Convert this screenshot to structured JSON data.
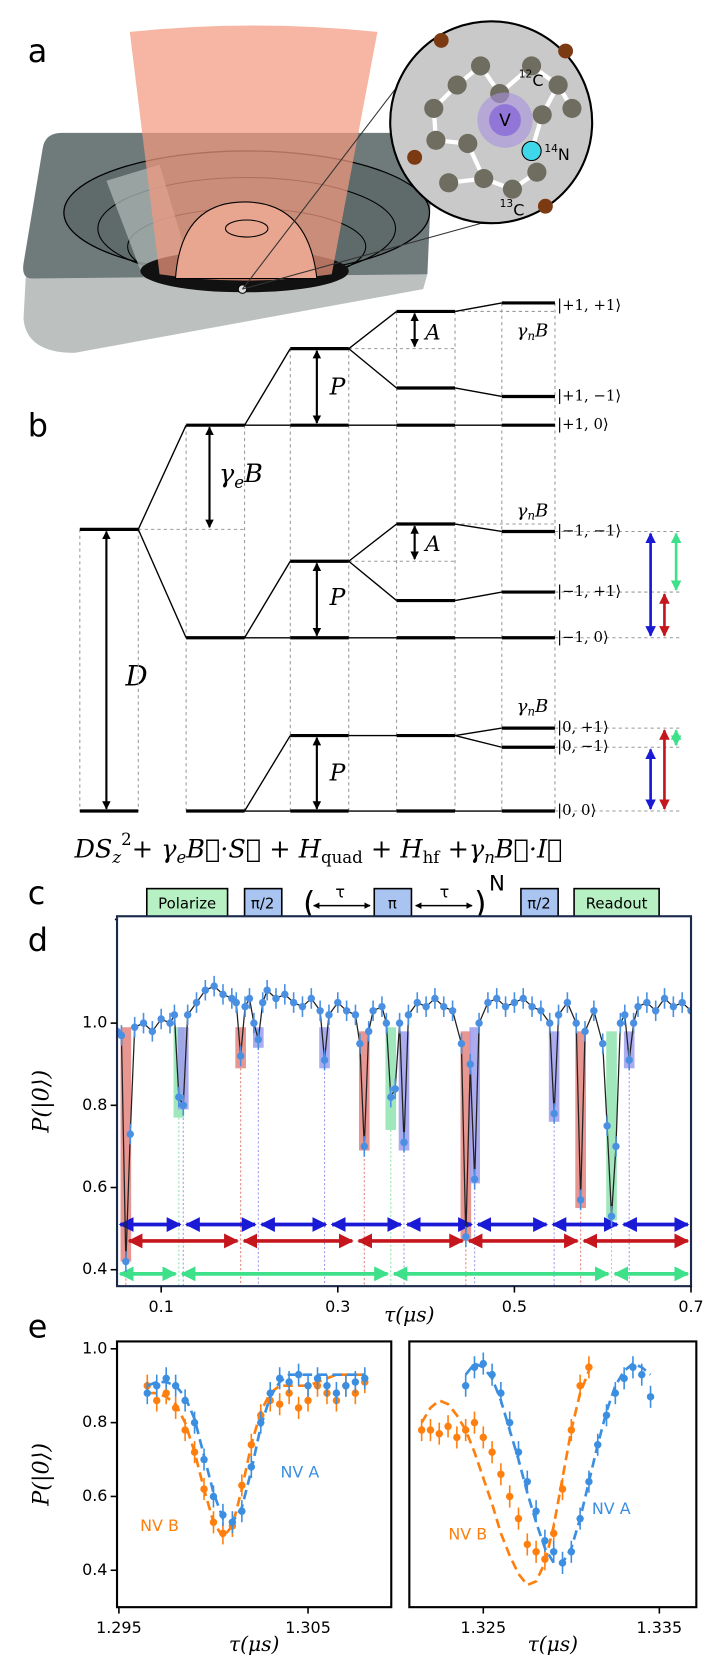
{
  "panel_labels": [
    "a",
    "b",
    "c",
    "d",
    "e"
  ],
  "inset": {
    "vacancy": "V",
    "c12": {
      "mass": "12",
      "element": "C"
    },
    "n14": {
      "mass": "14",
      "element": "N"
    },
    "c13": {
      "mass": "13",
      "element": "C"
    }
  },
  "level_diagram": {
    "states": [
      "|+1, +1⟩",
      "|+1, −1⟩",
      "|+1, 0⟩",
      "|−1, −1⟩",
      "|−1, +1⟩",
      "|−1, 0⟩",
      "|0, +1⟩",
      "|0, −1⟩",
      "|0, 0⟩"
    ],
    "zero_field_label": "D",
    "zeeman_label": [
      {
        "text": "γ",
        "role": "italic"
      },
      {
        "text": "e",
        "role": "sub-italic"
      },
      {
        "text": "B",
        "role": "italic"
      }
    ],
    "quadrupole_labels": [
      "P",
      "P",
      "P"
    ],
    "hyperfine_labels": [
      "A",
      "A"
    ],
    "nuclear_zeeman_labels": [
      [
        {
          "text": "γ",
          "role": "italic"
        },
        {
          "text": "n",
          "role": "sub-italic"
        },
        {
          "text": "B",
          "role": "italic"
        }
      ],
      [
        {
          "text": "γ",
          "role": "italic"
        },
        {
          "text": "n",
          "role": "sub-italic"
        },
        {
          "text": "B",
          "role": "italic"
        }
      ],
      [
        {
          "text": "γ",
          "role": "italic"
        },
        {
          "text": "n",
          "role": "sub-italic"
        },
        {
          "text": "B",
          "role": "italic"
        }
      ]
    ],
    "hamiltonian": [
      {
        "text": "DS",
        "role": "italic"
      },
      {
        "text": "z",
        "role": "sub-italic"
      },
      {
        "text": "2",
        "role": "sup"
      },
      {
        "text": "+ ",
        "role": "normal"
      },
      {
        "text": "γ",
        "role": "italic"
      },
      {
        "text": "e",
        "role": "sub-italic"
      },
      {
        "text": "B⃗·S⃗",
        "role": "italic"
      },
      {
        "text": " + ",
        "role": "normal"
      },
      {
        "text": "H",
        "role": "italic"
      },
      {
        "text": "quad",
        "role": "sub"
      },
      {
        "text": " + ",
        "role": "normal"
      },
      {
        "text": "H",
        "role": "italic"
      },
      {
        "text": "hf",
        "role": "sub"
      },
      {
        "text": " +",
        "role": "normal"
      },
      {
        "text": "γ",
        "role": "italic"
      },
      {
        "text": "n",
        "role": "sub-italic"
      },
      {
        "text": "B⃗·I⃗",
        "role": "italic"
      }
    ]
  },
  "pulse_sequence": {
    "blocks": [
      "Polarize",
      "π/2",
      "π",
      "π/2",
      "Readout"
    ],
    "delays": [
      "τ",
      "τ"
    ],
    "brackets": [
      "(",
      ")"
    ],
    "repeat": "N"
  },
  "chart_data": [
    {
      "type": "line",
      "xlabel": "τ(μs)",
      "ylabel": "P(|0⟩)",
      "xlim": [
        0.05,
        0.7
      ],
      "ylim": [
        0.36,
        1.26
      ],
      "xticks": [
        0.1,
        0.3,
        0.5,
        0.7
      ],
      "yticks": [
        0.4,
        0.6,
        0.8,
        {
          "value": 1.0,
          "label": "1.0"
        }
      ],
      "x": [
        0.05,
        0.055,
        0.06,
        0.065,
        0.07,
        0.08,
        0.09,
        0.1,
        0.11,
        0.115,
        0.12,
        0.125,
        0.13,
        0.14,
        0.15,
        0.16,
        0.17,
        0.18,
        0.185,
        0.19,
        0.195,
        0.2,
        0.205,
        0.21,
        0.215,
        0.22,
        0.23,
        0.24,
        0.25,
        0.26,
        0.27,
        0.28,
        0.285,
        0.29,
        0.3,
        0.31,
        0.32,
        0.325,
        0.33,
        0.335,
        0.34,
        0.35,
        0.355,
        0.36,
        0.365,
        0.37,
        0.375,
        0.38,
        0.39,
        0.4,
        0.41,
        0.42,
        0.43,
        0.44,
        0.445,
        0.45,
        0.455,
        0.46,
        0.47,
        0.48,
        0.49,
        0.5,
        0.51,
        0.52,
        0.53,
        0.54,
        0.545,
        0.55,
        0.56,
        0.57,
        0.575,
        0.58,
        0.59,
        0.6,
        0.605,
        0.61,
        0.615,
        0.62,
        0.625,
        0.63,
        0.635,
        0.64,
        0.65,
        0.66,
        0.67,
        0.68,
        0.69,
        0.7
      ],
      "series": [
        {
          "color": "#4a90e2",
          "error": 0.025,
          "values": [
            0.98,
            0.97,
            0.42,
            0.73,
            0.99,
            1.0,
            0.98,
            1.01,
            1.0,
            1.02,
            0.82,
            0.8,
            1.02,
            1.05,
            1.08,
            1.09,
            1.07,
            1.06,
            1.05,
            0.92,
            1.04,
            1.06,
            1.0,
            0.96,
            1.05,
            1.08,
            1.06,
            1.07,
            1.05,
            1.04,
            1.06,
            1.03,
            0.91,
            1.02,
            1.05,
            1.03,
            1.02,
            0.95,
            0.7,
            0.98,
            1.03,
            1.04,
            1.0,
            0.82,
            0.84,
            1.0,
            0.71,
            1.02,
            1.05,
            1.04,
            1.06,
            1.04,
            1.03,
            0.95,
            0.48,
            0.9,
            0.62,
            1.0,
            1.05,
            1.06,
            1.04,
            1.05,
            1.06,
            1.04,
            1.03,
            1.0,
            0.78,
            1.02,
            1.05,
            1.0,
            0.57,
            0.98,
            1.03,
            0.95,
            0.75,
            0.53,
            0.7,
            1.0,
            1.02,
            0.91,
            1.0,
            1.04,
            1.05,
            1.03,
            1.06,
            1.04,
            1.05,
            1.03
          ]
        }
      ],
      "bars": [
        {
          "x": 0.06,
          "range": [
            0.42,
            0.99
          ],
          "color": "#e3847e"
        },
        {
          "x": 0.19,
          "range": [
            0.89,
            0.99
          ],
          "color": "#e3847e"
        },
        {
          "x": 0.33,
          "range": [
            0.69,
            0.98
          ],
          "color": "#e3847e"
        },
        {
          "x": 0.445,
          "range": [
            0.47,
            0.98
          ],
          "color": "#e3847e"
        },
        {
          "x": 0.575,
          "range": [
            0.55,
            0.98
          ],
          "color": "#e3847e"
        },
        {
          "x": 0.12,
          "range": [
            0.77,
            0.99
          ],
          "color": "#8fe3b0"
        },
        {
          "x": 0.36,
          "range": [
            0.74,
            0.99
          ],
          "color": "#8fe3b0"
        },
        {
          "x": 0.61,
          "range": [
            0.52,
            0.98
          ],
          "color": "#8fe3b0"
        },
        {
          "x": 0.125,
          "range": [
            0.79,
            0.99
          ],
          "color": "#9c9cec"
        },
        {
          "x": 0.21,
          "range": [
            0.94,
            0.99
          ],
          "color": "#9c9cec"
        },
        {
          "x": 0.285,
          "range": [
            0.89,
            0.99
          ],
          "color": "#9c9cec"
        },
        {
          "x": 0.375,
          "range": [
            0.69,
            0.98
          ],
          "color": "#9c9cec"
        },
        {
          "x": 0.455,
          "range": [
            0.61,
            0.99
          ],
          "color": "#9c9cec"
        },
        {
          "x": 0.545,
          "range": [
            0.76,
            0.98
          ],
          "color": "#9c9cec"
        },
        {
          "x": 0.63,
          "range": [
            0.89,
            0.98
          ],
          "color": "#9c9cec"
        }
      ],
      "arrow_rows": [
        {
          "color": "#1a1ad6",
          "y": 0.51,
          "boundaries": [
            0.05,
            0.125,
            0.21,
            0.29,
            0.375,
            0.455,
            0.54,
            0.62,
            0.7
          ]
        },
        {
          "color": "#c4161c",
          "y": 0.47,
          "boundaries": [
            0.06,
            0.19,
            0.32,
            0.445,
            0.575,
            0.7
          ]
        },
        {
          "color": "#3ee08a",
          "y": 0.39,
          "boundaries": [
            0.05,
            0.12,
            0.36,
            0.61,
            0.7
          ]
        }
      ]
    },
    {
      "type": "line",
      "xlabel": "τ(μs)",
      "ylabel": "P(|0⟩)",
      "xlim": [
        1.2949,
        1.3094
      ],
      "ylim": [
        0.3,
        1.02
      ],
      "xticks": [
        1.295,
        1.305
      ],
      "yticks": [
        0.4,
        0.6,
        0.8,
        {
          "value": 1.0,
          "label": "1.0"
        }
      ],
      "x": [
        1.2965,
        1.297,
        1.2975,
        1.298,
        1.2985,
        1.299,
        1.2995,
        1.3,
        1.3005,
        1.301,
        1.3015,
        1.302,
        1.3025,
        1.303,
        1.3035,
        1.304,
        1.3045,
        1.305,
        1.3055,
        1.306,
        1.3065,
        1.307,
        1.3075,
        1.308
      ],
      "series": [
        {
          "name": "NV B",
          "color": "#ff7f0e",
          "error": 0.03,
          "values": [
            0.9,
            0.86,
            0.88,
            0.84,
            0.78,
            0.72,
            0.62,
            0.53,
            0.5,
            0.52,
            0.63,
            0.74,
            0.82,
            0.86,
            0.85,
            0.88,
            0.84,
            0.86,
            0.9,
            0.88,
            0.86,
            0.9,
            0.88,
            0.91
          ],
          "fit": [
            0.88,
            0.88,
            0.87,
            0.85,
            0.8,
            0.72,
            0.62,
            0.53,
            0.49,
            0.52,
            0.62,
            0.74,
            0.83,
            0.88,
            0.9,
            0.9,
            0.9,
            0.9,
            0.91,
            0.92,
            0.93,
            0.93,
            0.93,
            0.93
          ]
        },
        {
          "name": "NV A",
          "color": "#3c8fe0",
          "error": 0.03,
          "values": [
            0.88,
            0.9,
            0.92,
            0.9,
            0.86,
            0.8,
            0.7,
            0.6,
            0.55,
            0.53,
            0.56,
            0.68,
            0.8,
            0.88,
            0.92,
            0.91,
            0.93,
            0.9,
            0.92,
            0.9,
            0.88,
            0.9,
            0.91,
            0.92
          ],
          "fit": [
            0.9,
            0.91,
            0.91,
            0.9,
            0.87,
            0.81,
            0.71,
            0.61,
            0.54,
            0.53,
            0.57,
            0.67,
            0.79,
            0.87,
            0.91,
            0.93,
            0.93,
            0.93,
            0.93,
            0.93,
            0.93,
            0.93,
            0.93,
            0.93
          ]
        }
      ]
    },
    {
      "type": "line",
      "xlabel": "τ(μs)",
      "xlim": [
        1.3208,
        1.3371
      ],
      "ylim": [
        0.3,
        1.02
      ],
      "xticks": [
        1.325,
        1.335
      ],
      "series": [
        {
          "name": "NV B",
          "color": "#ff7f0e",
          "error": 0.03,
          "x": [
            1.3215,
            1.322,
            1.3225,
            1.323,
            1.3235,
            1.324,
            1.3245,
            1.325,
            1.3255,
            1.326,
            1.3265,
            1.327,
            1.3275,
            1.328,
            1.3285,
            1.329,
            1.3295,
            1.33,
            1.3305,
            1.331
          ],
          "values": [
            0.78,
            0.78,
            0.77,
            0.79,
            0.76,
            0.78,
            0.8,
            0.76,
            0.72,
            0.66,
            0.6,
            0.54,
            0.47,
            0.45,
            0.43,
            0.5,
            0.62,
            0.78,
            0.9,
            0.95
          ],
          "fit": [
            0.8,
            0.84,
            0.86,
            0.85,
            0.82,
            0.78,
            0.72,
            0.65,
            0.58,
            0.5,
            0.44,
            0.39,
            0.36,
            0.37,
            0.42,
            0.52,
            0.65,
            0.78,
            0.88,
            0.94
          ]
        },
        {
          "name": "NV A",
          "color": "#3c8fe0",
          "error": 0.03,
          "x": [
            1.324,
            1.3245,
            1.325,
            1.3255,
            1.326,
            1.3265,
            1.327,
            1.3275,
            1.328,
            1.3285,
            1.329,
            1.3295,
            1.33,
            1.3305,
            1.331,
            1.3315,
            1.332,
            1.3325,
            1.333,
            1.3335,
            1.334,
            1.3345
          ],
          "values": [
            0.9,
            0.95,
            0.96,
            0.93,
            0.88,
            0.8,
            0.72,
            0.64,
            0.56,
            0.48,
            0.45,
            0.42,
            0.45,
            0.54,
            0.64,
            0.74,
            0.82,
            0.88,
            0.92,
            0.95,
            0.93,
            0.87
          ],
          "fit": [
            0.93,
            0.96,
            0.95,
            0.92,
            0.86,
            0.78,
            0.7,
            0.61,
            0.53,
            0.46,
            0.42,
            0.42,
            0.46,
            0.54,
            0.64,
            0.74,
            0.83,
            0.9,
            0.94,
            0.96,
            0.95,
            0.93
          ]
        }
      ]
    }
  ]
}
